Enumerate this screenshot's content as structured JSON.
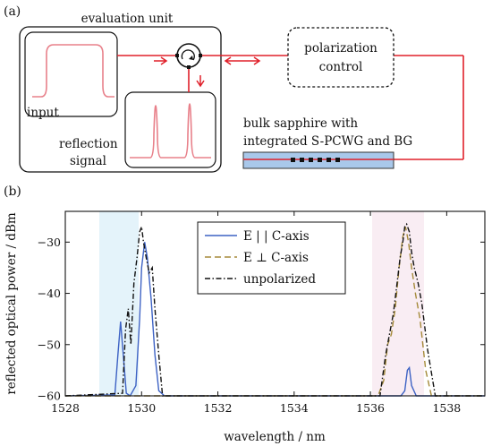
{
  "panel_a": {
    "label": "(a)",
    "evaluation_unit": "evaluation unit",
    "input_label": "input",
    "reflection_label_line1": "reflection",
    "reflection_label_line2": "signal",
    "polarization_line1": "polarization",
    "polarization_line2": "control",
    "sapphire_line1": "bulk sapphire with",
    "sapphire_line2": "integrated S-PCWG and BG",
    "colors": {
      "signal": "#e8808a",
      "fiber": "#e0202a",
      "sapphire": "#a9c8ea"
    }
  },
  "panel_b": {
    "label": "(b)"
  },
  "chart_data": {
    "type": "line",
    "xlabel": "wavelength / nm",
    "ylabel": "reflected optical power / dBm",
    "xlim": [
      1528,
      1539
    ],
    "ylim": [
      -60,
      -24
    ],
    "xticks": [
      1528,
      1530,
      1532,
      1534,
      1536,
      1538
    ],
    "yticks": [
      -30,
      -40,
      -50,
      -60
    ],
    "legend_position": "top-center",
    "series": [
      {
        "name": "E | | C-axis",
        "color": "#3d62c4",
        "style": "solid",
        "x": [
          1528,
          1529.3,
          1529.38,
          1529.45,
          1529.52,
          1529.6,
          1529.7,
          1529.85,
          1529.95,
          1530.0,
          1530.08,
          1530.15,
          1530.25,
          1530.35,
          1530.45,
          1530.6,
          1536.8,
          1536.9,
          1536.97,
          1537.02,
          1537.08,
          1537.2,
          1539
        ],
        "y": [
          -60,
          -59.8,
          -52,
          -45.5,
          -52,
          -59.5,
          -60,
          -58,
          -45,
          -35,
          -30,
          -33,
          -41,
          -52,
          -59,
          -60,
          -60,
          -59,
          -55,
          -54.5,
          -58,
          -60,
          -60
        ]
      },
      {
        "name": "E ⊥ C-axis",
        "color": "#a58a3a",
        "style": "dashed",
        "x": [
          1528,
          1536.2,
          1536.35,
          1536.45,
          1536.55,
          1536.65,
          1536.75,
          1536.85,
          1536.92,
          1537.0,
          1537.08,
          1537.18,
          1537.3,
          1537.45,
          1537.6,
          1539
        ],
        "y": [
          -60,
          -60,
          -57,
          -50,
          -48,
          -43,
          -35,
          -29,
          -27,
          -30,
          -35,
          -40,
          -45,
          -55,
          -60,
          -60
        ]
      },
      {
        "name": "unpolarized",
        "color": "#111111",
        "style": "dashdot",
        "x": [
          1528,
          1529.5,
          1529.58,
          1529.65,
          1529.72,
          1529.8,
          1529.88,
          1529.95,
          1530.0,
          1530.05,
          1530.12,
          1530.2,
          1530.28,
          1530.35,
          1530.45,
          1530.55,
          1536.25,
          1536.4,
          1536.5,
          1536.6,
          1536.7,
          1536.78,
          1536.85,
          1536.9,
          1536.95,
          1537.02,
          1537.08,
          1537.15,
          1537.25,
          1537.35,
          1537.5,
          1537.7,
          1539
        ],
        "y": [
          -60,
          -59.5,
          -47,
          -43,
          -50,
          -38,
          -33,
          -28,
          -27,
          -30,
          -33,
          -36,
          -35,
          -43,
          -52,
          -60,
          -60,
          -52,
          -48,
          -44,
          -38,
          -33,
          -30,
          -27,
          -26.5,
          -28,
          -32,
          -35,
          -38,
          -42,
          -51,
          -60,
          -60
        ]
      }
    ]
  }
}
